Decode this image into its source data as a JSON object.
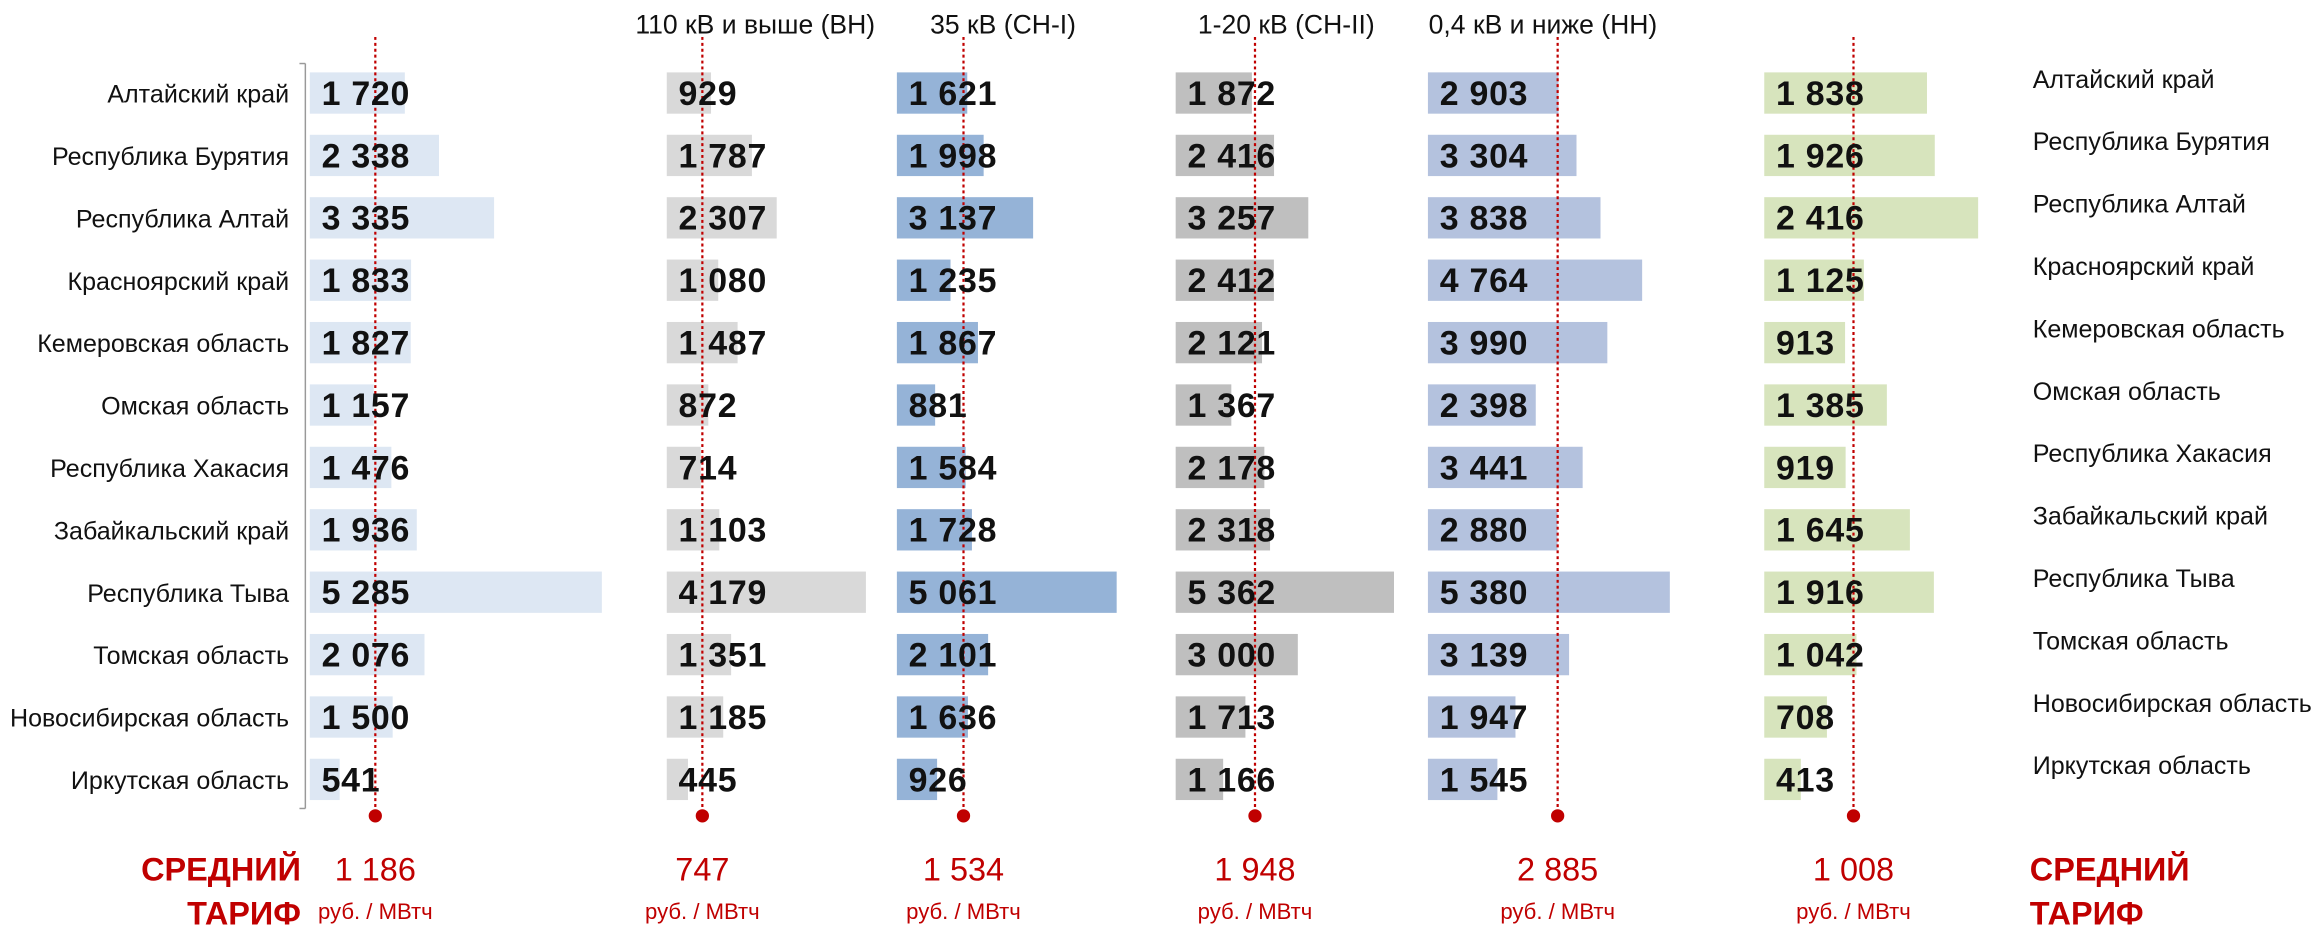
{
  "chart_data": [
    {
      "type": "bar",
      "orientation": "horizontal",
      "color": "#dde7f3",
      "categories": [
        "Алтайский край",
        "Республика Бурятия",
        "Республика Алтай",
        "Красноярский край",
        "Кемеровская область",
        "Омская область",
        "Республика Хакасия",
        "Забайкальский край",
        "Республика Тыва",
        "Томская область",
        "Новосибирская область",
        "Иркутская область"
      ],
      "values": [
        1720,
        2338,
        3335,
        1833,
        1827,
        1157,
        1476,
        1936,
        5285,
        2076,
        1500,
        541
      ],
      "value_labels": [
        "1 720",
        "2 338",
        "3 335",
        "1 833",
        "1 827",
        "1 157",
        "1 476",
        "1 936",
        "5 285",
        "2 076",
        "1 500",
        "541"
      ],
      "mean": 1186,
      "mean_label": "1 186",
      "unit": "руб. / МВтч",
      "average_caption": [
        "СРЕДНИЙ",
        "ТАРИФ"
      ]
    },
    {
      "type": "bar",
      "orientation": "horizontal",
      "color": "#d9d9d9",
      "title": "110 кВ и выше (ВН)",
      "values": [
        929,
        1787,
        2307,
        1080,
        1487,
        872,
        714,
        1103,
        4179,
        1351,
        1185,
        445
      ],
      "value_labels": [
        "929",
        "1 787",
        "2 307",
        "1 080",
        "1 487",
        "872",
        "714",
        "1 103",
        "4 179",
        "1 351",
        "1 185",
        "445"
      ],
      "mean": 747,
      "unit": "руб. / МВтч"
    },
    {
      "type": "bar",
      "orientation": "horizontal",
      "color": "#95b3d7",
      "title": "35 кВ (СН-I)",
      "values": [
        1621,
        1998,
        3137,
        1235,
        1867,
        881,
        1584,
        1728,
        5061,
        2101,
        1636,
        926
      ],
      "value_labels": [
        "1 621",
        "1 998",
        "3 137",
        "1 235",
        "1 867",
        "881",
        "1 584",
        "1 728",
        "5 061",
        "2 101",
        "1 636",
        "926"
      ],
      "mean": 1534,
      "mean_label": "1 534",
      "unit": "руб. / МВтч"
    },
    {
      "type": "bar",
      "orientation": "horizontal",
      "color": "#bfbfbf",
      "title": "1-20 кВ (СН-II)",
      "values": [
        1872,
        2416,
        3257,
        2412,
        2121,
        1367,
        2178,
        2318,
        5362,
        3000,
        1713,
        1166
      ],
      "value_labels": [
        "1 872",
        "2 416",
        "3 257",
        "2 412",
        "2 121",
        "1 367",
        "2 178",
        "2 318",
        "5 362",
        "3 000",
        "1 713",
        "1 166"
      ],
      "mean": 1948,
      "mean_label": "1 948",
      "unit": "руб. / МВтч"
    },
    {
      "type": "bar",
      "orientation": "horizontal",
      "color": "#b4c2de",
      "title": "0,4 кВ и ниже (НН)",
      "values": [
        2903,
        3304,
        3838,
        4764,
        3990,
        2398,
        3441,
        2880,
        5380,
        3139,
        1947,
        1545
      ],
      "value_labels": [
        "2 903",
        "3 304",
        "3 838",
        "4 764",
        "3 990",
        "2 398",
        "3 441",
        "2 880",
        "5 380",
        "3 139",
        "1 947",
        "1 545"
      ],
      "mean": 2885,
      "mean_label": "2 885",
      "unit": "руб. / МВтч"
    },
    {
      "type": "bar",
      "orientation": "horizontal",
      "color": "#d7e4bd",
      "categories": [
        "Алтайский край",
        "Республика Бурятия",
        "Республика Алтай",
        "Красноярский край",
        "Кемеровская область",
        "Омская область",
        "Республика Хакасия",
        "Забайкальский край",
        "Республика Тыва",
        "Томская область",
        "Новосибирская область",
        "Иркутская область"
      ],
      "values": [
        1838,
        1926,
        2416,
        1125,
        913,
        1385,
        919,
        1645,
        1916,
        1042,
        708,
        413
      ],
      "value_labels": [
        "1 838",
        "1 926",
        "2 416",
        "1 125",
        "913",
        "1 385",
        "919",
        "1 645",
        "1 916",
        "1 042",
        "708",
        "413"
      ],
      "mean": 1008,
      "mean_label": "1 008",
      "unit": "руб. / МВтч",
      "average_caption": [
        "СРЕДНИЙ",
        "ТАРИФ"
      ]
    }
  ]
}
